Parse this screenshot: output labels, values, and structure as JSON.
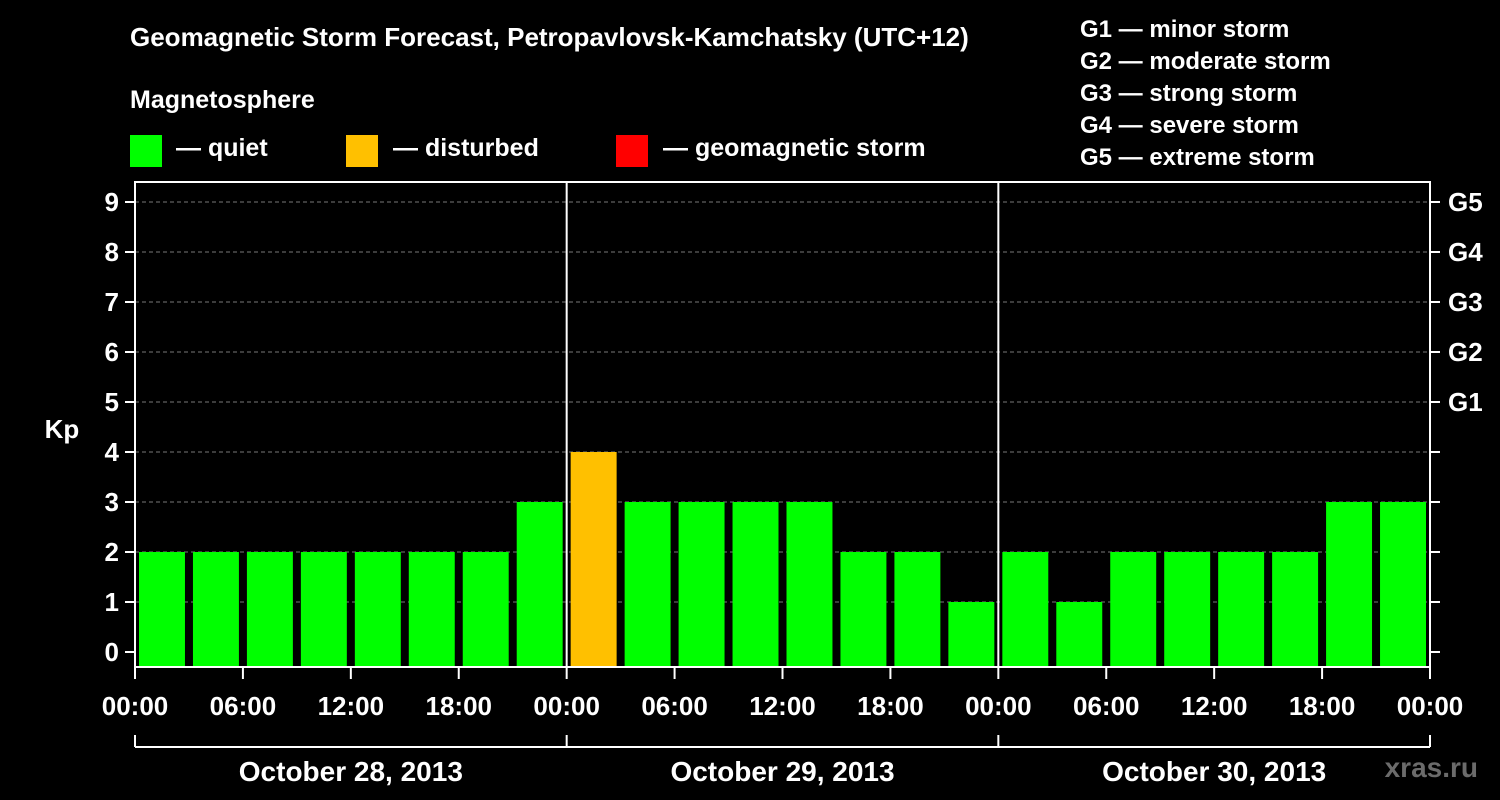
{
  "header": {
    "title": "Geomagnetic Storm Forecast, Petropavlovsk-Kamchatsky (UTC+12)",
    "legend_title": "Magnetosphere"
  },
  "legend": [
    {
      "label": "— quiet",
      "color": "#00ff00"
    },
    {
      "label": "— disturbed",
      "color": "#ffc000"
    },
    {
      "label": "— geomagnetic storm",
      "color": "#ff0000"
    }
  ],
  "storm_scale": [
    "G1 — minor storm",
    "G2 — moderate storm",
    "G3 — strong storm",
    "G4 — severe storm",
    "G5 — extreme storm"
  ],
  "watermark": "xras.ru",
  "chart_data": {
    "type": "bar",
    "ylabel": "Kp",
    "ylim": [
      0,
      9
    ],
    "yticks": [
      0,
      1,
      2,
      3,
      4,
      5,
      6,
      7,
      8,
      9
    ],
    "right_ticks": [
      {
        "value": 5,
        "label": "G1"
      },
      {
        "value": 6,
        "label": "G2"
      },
      {
        "value": 7,
        "label": "G3"
      },
      {
        "value": 8,
        "label": "G4"
      },
      {
        "value": 9,
        "label": "G5"
      }
    ],
    "x_tick_labels": [
      "00:00",
      "06:00",
      "12:00",
      "18:00",
      "00:00",
      "06:00",
      "12:00",
      "18:00",
      "00:00",
      "06:00",
      "12:00",
      "18:00",
      "00:00"
    ],
    "days": [
      "October 28, 2013",
      "October 29, 2013",
      "October 30, 2013"
    ],
    "values": [
      2,
      2,
      2,
      2,
      2,
      2,
      2,
      3,
      4,
      3,
      3,
      3,
      3,
      2,
      2,
      1,
      2,
      1,
      2,
      2,
      2,
      2,
      3,
      3
    ],
    "colors": {
      "quiet": "#00ff00",
      "disturbed": "#ffc000",
      "storm": "#ff0000"
    },
    "grid": "dashed horizontal"
  }
}
